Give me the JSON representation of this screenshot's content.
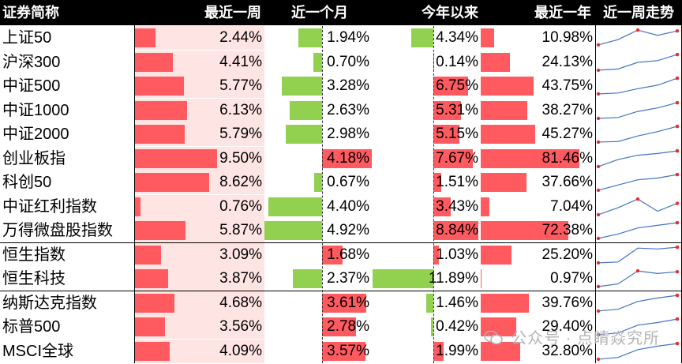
{
  "headers": [
    "证券简称",
    "最近一周",
    "近一个月",
    "今年以来",
    "最近一年",
    "近一周走势"
  ],
  "colors": {
    "positive": "#ff5a5f",
    "negative": "#92d050",
    "week_bg": "#ffe4e4",
    "sparkline": "#4472c4",
    "marker": "#e03030"
  },
  "rows": [
    {
      "name": "上证50",
      "week": 2.44,
      "week_label": "2.44%",
      "month": -1.94,
      "month_label": "1.94%",
      "ytd": -4.34,
      "ytd_label": "4.34%",
      "year": 10.98,
      "year_label": "10.98%",
      "trend": [
        0.1,
        0.4,
        0.95,
        0.65,
        0.9
      ]
    },
    {
      "name": "沪深300",
      "week": 4.41,
      "week_label": "4.41%",
      "month": -0.7,
      "month_label": "0.70%",
      "ytd": 0.14,
      "ytd_label": "0.14%",
      "year": 24.13,
      "year_label": "24.13%",
      "trend": [
        0.05,
        0.12,
        0.5,
        0.6,
        0.95
      ]
    },
    {
      "name": "中证500",
      "week": 5.77,
      "week_label": "5.77%",
      "month": -3.28,
      "month_label": "3.28%",
      "ytd": 6.75,
      "ytd_label": "6.75%",
      "year": 43.75,
      "year_label": "43.75%",
      "trend": [
        0.05,
        0.1,
        0.35,
        0.55,
        0.95
      ]
    },
    {
      "name": "中证1000",
      "week": 6.13,
      "week_label": "6.13%",
      "month": -2.63,
      "month_label": "2.63%",
      "ytd": 5.31,
      "ytd_label": "5.31%",
      "year": 38.27,
      "year_label": "38.27%",
      "trend": [
        0.05,
        0.1,
        0.45,
        0.65,
        0.95
      ]
    },
    {
      "name": "中证2000",
      "week": 5.79,
      "week_label": "5.79%",
      "month": -2.98,
      "month_label": "2.98%",
      "ytd": 5.15,
      "ytd_label": "5.15%",
      "year": 45.27,
      "year_label": "45.27%",
      "trend": [
        0.05,
        0.08,
        0.4,
        0.65,
        0.95
      ]
    },
    {
      "name": "创业板指",
      "week": 9.5,
      "week_label": "9.50%",
      "month": 4.18,
      "month_label": "4.18%",
      "ytd": 7.67,
      "ytd_label": "7.67%",
      "year": 81.46,
      "year_label": "81.46%",
      "trend": [
        0.05,
        0.45,
        0.7,
        0.8,
        0.95
      ]
    },
    {
      "name": "科创50",
      "week": 8.62,
      "week_label": "8.62%",
      "month": -0.67,
      "month_label": "0.67%",
      "ytd": 1.51,
      "ytd_label": "1.51%",
      "year": 37.66,
      "year_label": "37.66%",
      "trend": [
        0.05,
        0.35,
        0.65,
        0.75,
        0.95
      ]
    },
    {
      "name": "中证红利指数",
      "week": 0.76,
      "week_label": "0.76%",
      "month": -4.4,
      "month_label": "4.40%",
      "ytd": 3.43,
      "ytd_label": "3.43%",
      "year": 7.04,
      "year_label": "7.04%",
      "trend": [
        0.05,
        0.45,
        0.95,
        0.25,
        0.7
      ]
    },
    {
      "name": "万得微盘股指数",
      "week": 5.87,
      "week_label": "5.87%",
      "month": -4.92,
      "month_label": "4.92%",
      "ytd": 8.84,
      "ytd_label": "8.84%",
      "year": 72.38,
      "year_label": "72.38%",
      "trend": [
        0.05,
        0.3,
        0.65,
        0.8,
        0.95
      ]
    },
    {
      "name": "恒生指数",
      "week": 3.09,
      "week_label": "3.09%",
      "month": 1.68,
      "month_label": "1.68%",
      "ytd": 1.03,
      "ytd_label": "1.03%",
      "year": 25.2,
      "year_label": "25.20%",
      "trend": [
        0.05,
        0.1,
        0.9,
        0.85,
        0.95
      ]
    },
    {
      "name": "恒生科技",
      "week": 3.87,
      "week_label": "3.87%",
      "month": -2.37,
      "month_label": "2.37%",
      "ytd": -11.89,
      "ytd_label": "11.89%",
      "year": 0.97,
      "year_label": "0.97%",
      "trend": [
        0.05,
        0.2,
        0.95,
        0.8,
        0.9
      ]
    },
    {
      "name": "纳斯达克指数",
      "week": 4.68,
      "week_label": "4.68%",
      "month": 3.61,
      "month_label": "3.61%",
      "ytd": -1.46,
      "ytd_label": "1.46%",
      "year": 39.76,
      "year_label": "39.76%",
      "trend": [
        0.05,
        0.15,
        0.6,
        0.8,
        0.95
      ]
    },
    {
      "name": "标普500",
      "week": 3.56,
      "week_label": "3.56%",
      "month": 2.78,
      "month_label": "2.78%",
      "ytd": -0.42,
      "ytd_label": "0.42%",
      "year": 29.4,
      "year_label": "29.40%",
      "trend": [
        0.05,
        0.15,
        0.6,
        0.75,
        0.95
      ]
    },
    {
      "name": "MSCI全球",
      "week": 4.09,
      "week_label": "4.09%",
      "month": 3.57,
      "month_label": "3.57%",
      "ytd": 1.99,
      "ytd_label": "1.99%",
      "year": 32.8,
      "year_label": "32.80%",
      "trend": [
        0.05,
        0.15,
        0.6,
        0.8,
        0.95
      ]
    }
  ],
  "watermark": "公众号 · 点睛焱究所"
}
